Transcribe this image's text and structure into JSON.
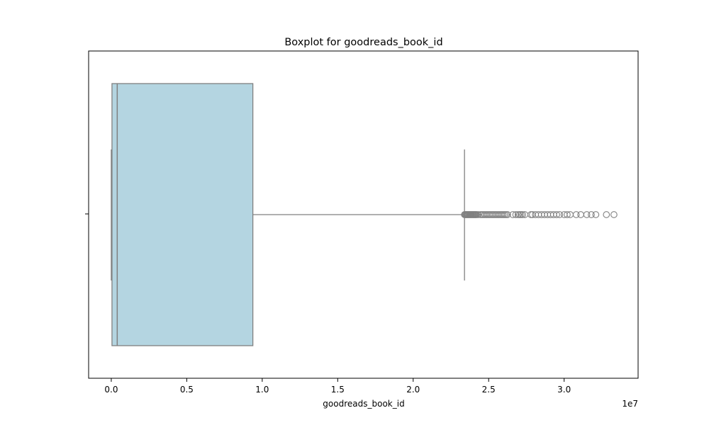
{
  "chart_data": {
    "type": "box",
    "orientation": "horizontal",
    "title": "Boxplot for goodreads_book_id",
    "xlabel": "goodreads_book_id",
    "ylabel": "",
    "x_offset_label": "1e7",
    "x_multiplier": 10000000,
    "xlim": [
      -1500000,
      34900000
    ],
    "x_ticks": [
      {
        "value": 0,
        "label": "0.0"
      },
      {
        "value": 5000000,
        "label": "0.5"
      },
      {
        "value": 10000000,
        "label": "1.0"
      },
      {
        "value": 15000000,
        "label": "1.5"
      },
      {
        "value": 20000000,
        "label": "2.0"
      },
      {
        "value": 25000000,
        "label": "2.5"
      },
      {
        "value": 30000000,
        "label": "3.0"
      }
    ],
    "box": {
      "whisker_low": 1,
      "q1": 47000,
      "median": 395000,
      "q3": 9380000,
      "whisker_high": 23400000
    },
    "outliers": [
      23400000,
      23450000,
      23500000,
      23550000,
      23600000,
      23650000,
      23700000,
      23750000,
      23800000,
      23850000,
      23900000,
      23950000,
      24000000,
      24050000,
      24100000,
      24150000,
      24200000,
      24300000,
      24450000,
      24550000,
      24650000,
      24750000,
      24850000,
      24950000,
      25050000,
      25150000,
      25250000,
      25350000,
      25450000,
      25550000,
      25650000,
      25750000,
      25850000,
      25950000,
      26050000,
      26150000,
      26250000,
      26600000,
      26800000,
      26950000,
      27050000,
      27150000,
      27250000,
      27400000,
      27800000,
      27900000,
      28100000,
      28300000,
      28500000,
      28700000,
      28900000,
      29100000,
      29300000,
      29500000,
      29700000,
      30000000,
      30200000,
      30400000,
      30800000,
      31100000,
      31500000,
      31800000,
      32100000,
      32800000,
      33300000
    ],
    "colors": {
      "box_fill": "#b4d5e1",
      "box_edge": "#808080",
      "outlier_edge": "#808080"
    },
    "grid": false,
    "legend": "none"
  }
}
